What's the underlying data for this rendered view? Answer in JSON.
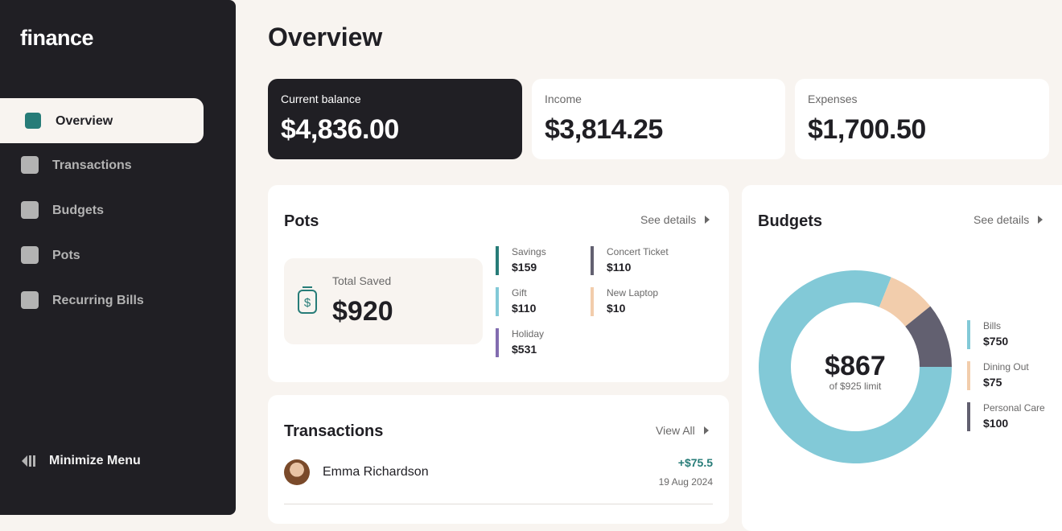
{
  "sidebar": {
    "logo": "finance",
    "nav": [
      "Overview",
      "Transactions",
      "Budgets",
      "Pots",
      "Recurring Bills"
    ],
    "active": 0,
    "minimize": "Minimize Menu"
  },
  "header": {
    "title": "Overview"
  },
  "summary": [
    {
      "label": "Current balance",
      "value": "$4,836.00"
    },
    {
      "label": "Income",
      "value": "$3,814.25"
    },
    {
      "label": "Expenses",
      "value": "$1,700.50"
    }
  ],
  "pots": {
    "title": "Pots",
    "link": "See details",
    "total_label": "Total Saved",
    "total": "$920",
    "items": [
      {
        "name": "Savings",
        "amount": "$159",
        "color": "#277c78"
      },
      {
        "name": "Concert Ticket",
        "amount": "$110",
        "color": "#626070"
      },
      {
        "name": "Gift",
        "amount": "$110",
        "color": "#82c9d7"
      },
      {
        "name": "New Laptop",
        "amount": "$10",
        "color": "#f2cdac"
      },
      {
        "name": "Holiday",
        "amount": "$531",
        "color": "#826cb0"
      }
    ]
  },
  "transactions": {
    "title": "Transactions",
    "link": "View All",
    "items": [
      {
        "name": "Emma Richardson",
        "amount": "+$75.5",
        "date": "19 Aug 2024"
      }
    ]
  },
  "budgets": {
    "title": "Budgets",
    "link": "See details"
  },
  "chart_data": {
    "type": "donut",
    "center_value": "$867",
    "center_caption": "of $925 limit",
    "categories": [
      "Bills",
      "Dining Out",
      "Personal Care"
    ],
    "values": [
      750,
      75,
      100
    ],
    "value_labels": [
      "$750",
      "$75",
      "$100"
    ],
    "colors": [
      "#82c9d7",
      "#f2cdac",
      "#626070"
    ]
  }
}
